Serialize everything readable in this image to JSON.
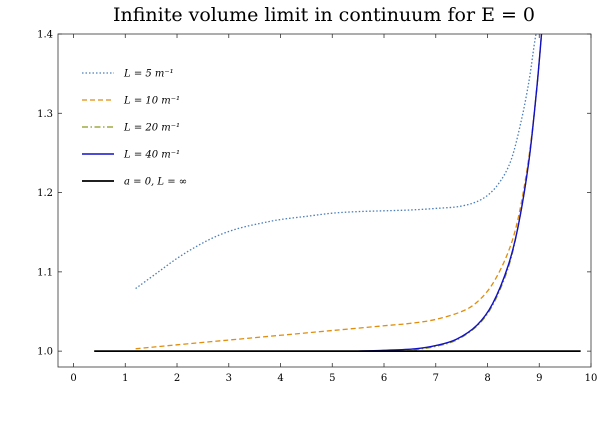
{
  "chart_data": {
    "type": "line",
    "title": "Infinite volume limit in continuum for E = 0",
    "xlabel": "",
    "ylabel": "",
    "xlim": [
      -0.3,
      10.0
    ],
    "ylim": [
      0.98,
      1.4
    ],
    "x_ticks": [
      0,
      1,
      2,
      3,
      4,
      5,
      6,
      7,
      8,
      9,
      10
    ],
    "x_tick_labels": [
      "0",
      "1",
      "2",
      "3",
      "4",
      "5",
      "6",
      "7",
      "8",
      "9",
      "10"
    ],
    "y_ticks": [
      1.0,
      1.1,
      1.2,
      1.3,
      1.4
    ],
    "y_tick_labels": [
      "1.0",
      "1.1",
      "1.2",
      "1.3",
      "1.4"
    ],
    "grid": false,
    "legend_position": "top-left",
    "series": [
      {
        "name": "L = 5 m⁻¹",
        "color": "#4a7ebb",
        "style": "dotted",
        "points": [
          [
            1.2,
            1.079
          ],
          [
            1.6,
            1.098
          ],
          [
            2.0,
            1.117
          ],
          [
            2.4,
            1.133
          ],
          [
            2.8,
            1.146
          ],
          [
            3.2,
            1.155
          ],
          [
            3.6,
            1.161
          ],
          [
            4.0,
            1.166
          ],
          [
            4.5,
            1.17
          ],
          [
            5.0,
            1.174
          ],
          [
            5.5,
            1.176
          ],
          [
            6.0,
            1.177
          ],
          [
            6.5,
            1.178
          ],
          [
            7.0,
            1.18
          ],
          [
            7.5,
            1.183
          ],
          [
            7.9,
            1.192
          ],
          [
            8.2,
            1.21
          ],
          [
            8.45,
            1.24
          ],
          [
            8.65,
            1.29
          ],
          [
            8.8,
            1.34
          ],
          [
            8.9,
            1.385
          ],
          [
            8.95,
            1.405
          ]
        ]
      },
      {
        "name": "L = 10 m⁻¹",
        "color": "#e08e0b",
        "style": "dashed",
        "points": [
          [
            1.2,
            1.003
          ],
          [
            2.0,
            1.008
          ],
          [
            3.0,
            1.014
          ],
          [
            4.0,
            1.02
          ],
          [
            5.0,
            1.026
          ],
          [
            6.0,
            1.032
          ],
          [
            6.5,
            1.035
          ],
          [
            7.0,
            1.04
          ],
          [
            7.5,
            1.05
          ],
          [
            7.8,
            1.062
          ],
          [
            8.1,
            1.085
          ],
          [
            8.4,
            1.125
          ],
          [
            8.6,
            1.17
          ],
          [
            8.8,
            1.245
          ],
          [
            8.95,
            1.33
          ],
          [
            9.05,
            1.405
          ]
        ]
      },
      {
        "name": "L = 20 m⁻¹",
        "color": "#8a9a1b",
        "style": "dashdot",
        "points": [
          [
            0.4,
            1.0
          ],
          [
            6.0,
            1.0
          ],
          [
            6.6,
            1.002
          ],
          [
            7.0,
            1.006
          ],
          [
            7.4,
            1.014
          ],
          [
            7.8,
            1.032
          ],
          [
            8.1,
            1.058
          ],
          [
            8.4,
            1.105
          ],
          [
            8.6,
            1.16
          ],
          [
            8.8,
            1.24
          ],
          [
            8.95,
            1.33
          ],
          [
            9.05,
            1.405
          ]
        ]
      },
      {
        "name": "L = 40 m⁻¹",
        "color": "#1010c8",
        "style": "solid",
        "points": [
          [
            5.5,
            1.0
          ],
          [
            6.0,
            1.001
          ],
          [
            6.6,
            1.003
          ],
          [
            7.0,
            1.007
          ],
          [
            7.4,
            1.015
          ],
          [
            7.8,
            1.033
          ],
          [
            8.1,
            1.06
          ],
          [
            8.4,
            1.108
          ],
          [
            8.6,
            1.16
          ],
          [
            8.8,
            1.24
          ],
          [
            8.95,
            1.33
          ],
          [
            9.05,
            1.405
          ]
        ]
      },
      {
        "name": "a = 0, L = ∞",
        "color": "#000000",
        "style": "solid-thick",
        "points": [
          [
            0.4,
            1.0
          ],
          [
            9.8,
            1.0
          ]
        ]
      }
    ]
  }
}
